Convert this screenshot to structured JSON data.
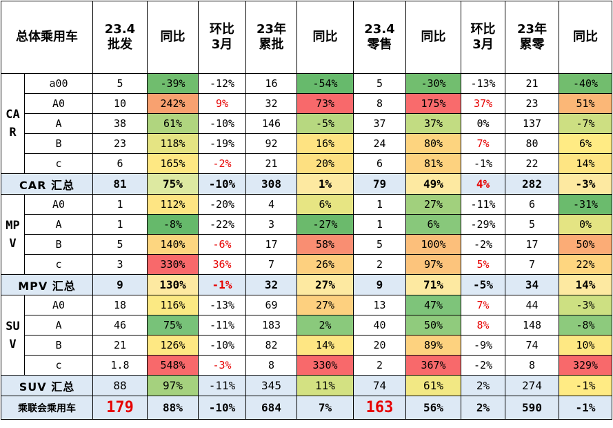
{
  "header": {
    "corner": "总体乘用车",
    "columns": [
      "23.4批发",
      "同比",
      "环比3月",
      "23年累批",
      "同比",
      "23.4零售",
      "同比",
      "环比3月",
      "23年累零",
      "同比"
    ]
  },
  "groups": [
    {
      "label": "CAR",
      "rows": [
        {
          "segment": "a00",
          "cells": [
            {
              "v": "5"
            },
            {
              "v": "-39%",
              "bg": "#70bd6e"
            },
            {
              "v": "-12%"
            },
            {
              "v": "16"
            },
            {
              "v": "-54%",
              "bg": "#67ba6c"
            },
            {
              "v": "5"
            },
            {
              "v": "-30%",
              "bg": "#72be6f"
            },
            {
              "v": "-13%"
            },
            {
              "v": "21"
            },
            {
              "v": "-40%",
              "bg": "#72bd6e"
            }
          ]
        },
        {
          "segment": "A0",
          "cells": [
            {
              "v": "10"
            },
            {
              "v": "242%",
              "bg": "#f8a170"
            },
            {
              "v": "9%",
              "red": true
            },
            {
              "v": "32"
            },
            {
              "v": "73%",
              "bg": "#f8696b"
            },
            {
              "v": "8"
            },
            {
              "v": "175%",
              "bg": "#f96b6c"
            },
            {
              "v": "37%",
              "red": true
            },
            {
              "v": "23"
            },
            {
              "v": "51%",
              "bg": "#fbb777"
            }
          ]
        },
        {
          "segment": "A",
          "cells": [
            {
              "v": "38"
            },
            {
              "v": "61%",
              "bg": "#b0d57f"
            },
            {
              "v": "-10%"
            },
            {
              "v": "146"
            },
            {
              "v": "-5%",
              "bg": "#b7d880"
            },
            {
              "v": "37"
            },
            {
              "v": "37%",
              "bg": "#c2dc82"
            },
            {
              "v": "0%"
            },
            {
              "v": "137"
            },
            {
              "v": "-7%",
              "bg": "#cddf82"
            }
          ]
        },
        {
          "segment": "B",
          "cells": [
            {
              "v": "23"
            },
            {
              "v": "118%",
              "bg": "#e5e483"
            },
            {
              "v": "-19%"
            },
            {
              "v": "92"
            },
            {
              "v": "16%",
              "bg": "#fee382"
            },
            {
              "v": "24"
            },
            {
              "v": "80%",
              "bg": "#fdd47f"
            },
            {
              "v": "7%",
              "red": true
            },
            {
              "v": "80"
            },
            {
              "v": "6%",
              "bg": "#ffeb84"
            }
          ]
        },
        {
          "segment": "c",
          "cells": [
            {
              "v": "6"
            },
            {
              "v": "165%",
              "bg": "#fee883"
            },
            {
              "v": "-2%",
              "red": true
            },
            {
              "v": "21"
            },
            {
              "v": "20%",
              "bg": "#fde081"
            },
            {
              "v": "6"
            },
            {
              "v": "81%",
              "bg": "#fdd27f"
            },
            {
              "v": "-1%"
            },
            {
              "v": "22"
            },
            {
              "v": "14%",
              "bg": "#fee583"
            }
          ]
        }
      ],
      "summary": {
        "label": "CAR 汇总",
        "cells": [
          {
            "v": "81"
          },
          {
            "v": "75%"
          },
          {
            "v": "-10%"
          },
          {
            "v": "308"
          },
          {
            "v": "1%"
          },
          {
            "v": "79"
          },
          {
            "v": "49%"
          },
          {
            "v": "4%",
            "red": true
          },
          {
            "v": "282"
          },
          {
            "v": "-3%"
          }
        ]
      }
    },
    {
      "label": "MPV",
      "rows": [
        {
          "segment": "A0",
          "cells": [
            {
              "v": "1"
            },
            {
              "v": "112%",
              "bg": "#fee583"
            },
            {
              "v": "-20%"
            },
            {
              "v": "4"
            },
            {
              "v": "6%",
              "bg": "#e7e583"
            },
            {
              "v": "1"
            },
            {
              "v": "27%",
              "bg": "#a1d07d"
            },
            {
              "v": "-11%"
            },
            {
              "v": "6"
            },
            {
              "v": "-31%",
              "bg": "#6bbb6d"
            }
          ]
        },
        {
          "segment": "A",
          "cells": [
            {
              "v": "1"
            },
            {
              "v": "-8%",
              "bg": "#66b96b"
            },
            {
              "v": "-22%"
            },
            {
              "v": "3"
            },
            {
              "v": "-27%",
              "bg": "#6bba6c"
            },
            {
              "v": "1"
            },
            {
              "v": "6%",
              "bg": "#88c87b"
            },
            {
              "v": "-29%"
            },
            {
              "v": "5"
            },
            {
              "v": "0%",
              "bg": "#e4e483"
            }
          ]
        },
        {
          "segment": "B",
          "cells": [
            {
              "v": "5"
            },
            {
              "v": "140%",
              "bg": "#fdd680"
            },
            {
              "v": "-6%",
              "red": true
            },
            {
              "v": "17"
            },
            {
              "v": "58%",
              "bg": "#f98e72"
            },
            {
              "v": "5"
            },
            {
              "v": "100%",
              "bg": "#fcbf7b"
            },
            {
              "v": "-2%"
            },
            {
              "v": "17"
            },
            {
              "v": "50%",
              "bg": "#fbac76"
            }
          ]
        },
        {
          "segment": "c",
          "cells": [
            {
              "v": "3"
            },
            {
              "v": "330%",
              "bg": "#f8696b"
            },
            {
              "v": "36%",
              "red": true
            },
            {
              "v": "7"
            },
            {
              "v": "26%",
              "bg": "#fdd07f"
            },
            {
              "v": "2"
            },
            {
              "v": "97%",
              "bg": "#fcc47c"
            },
            {
              "v": "5%",
              "red": true
            },
            {
              "v": "7"
            },
            {
              "v": "22%",
              "bg": "#fed680"
            }
          ]
        }
      ],
      "summary": {
        "label": "MPV 汇总",
        "cells": [
          {
            "v": "9"
          },
          {
            "v": "130%"
          },
          {
            "v": "-1%",
            "red": true
          },
          {
            "v": "32"
          },
          {
            "v": "27%"
          },
          {
            "v": "9"
          },
          {
            "v": "71%"
          },
          {
            "v": "-5%"
          },
          {
            "v": "34"
          },
          {
            "v": "14%"
          }
        ]
      }
    },
    {
      "label": "SUV",
      "rows": [
        {
          "segment": "A0",
          "cells": [
            {
              "v": "18"
            },
            {
              "v": "116%",
              "bg": "#fbe983"
            },
            {
              "v": "-13%"
            },
            {
              "v": "69"
            },
            {
              "v": "27%",
              "bg": "#fdd07f"
            },
            {
              "v": "13"
            },
            {
              "v": "47%",
              "bg": "#7ec47a"
            },
            {
              "v": "7%",
              "red": true
            },
            {
              "v": "44"
            },
            {
              "v": "-3%",
              "bg": "#cde082"
            }
          ]
        },
        {
          "segment": "A",
          "cells": [
            {
              "v": "46"
            },
            {
              "v": "75%",
              "bg": "#78c279"
            },
            {
              "v": "-11%"
            },
            {
              "v": "183"
            },
            {
              "v": "2%",
              "bg": "#8ac97c"
            },
            {
              "v": "40"
            },
            {
              "v": "50%",
              "bg": "#90cb7d"
            },
            {
              "v": "8%",
              "red": true
            },
            {
              "v": "148"
            },
            {
              "v": "-8%",
              "bg": "#8dca7d"
            }
          ]
        },
        {
          "segment": "B",
          "cells": [
            {
              "v": "21"
            },
            {
              "v": "126%",
              "bg": "#fee883"
            },
            {
              "v": "-10%"
            },
            {
              "v": "82"
            },
            {
              "v": "14%",
              "bg": "#fee683"
            },
            {
              "v": "20"
            },
            {
              "v": "89%",
              "bg": "#fdd27f"
            },
            {
              "v": "-9%"
            },
            {
              "v": "74"
            },
            {
              "v": "10%",
              "bg": "#fee883"
            }
          ]
        },
        {
          "segment": "c",
          "cells": [
            {
              "v": "1.8"
            },
            {
              "v": "548%",
              "bg": "#f8696b"
            },
            {
              "v": "-3%",
              "red": true
            },
            {
              "v": "8"
            },
            {
              "v": "330%",
              "bg": "#f8696b"
            },
            {
              "v": "2"
            },
            {
              "v": "367%",
              "bg": "#f8696b"
            },
            {
              "v": "-2%"
            },
            {
              "v": "8"
            },
            {
              "v": "329%",
              "bg": "#f8696b"
            }
          ]
        }
      ],
      "summary": {
        "label": "SUV 汇总",
        "plain": true,
        "cells": [
          {
            "v": "88"
          },
          {
            "v": "97%",
            "bg": "#a5d17e"
          },
          {
            "v": "-11%"
          },
          {
            "v": "345"
          },
          {
            "v": "11%",
            "bg": "#d3e182"
          },
          {
            "v": "74"
          },
          {
            "v": "61%",
            "bg": "#f2e884"
          },
          {
            "v": "2%"
          },
          {
            "v": "274"
          },
          {
            "v": "-1%",
            "bg": "#ffeb84"
          }
        ]
      }
    }
  ],
  "total": {
    "label": "乘联会乘用车",
    "cells": [
      {
        "v": "179",
        "big": true
      },
      {
        "v": "88%"
      },
      {
        "v": "-10%"
      },
      {
        "v": "684"
      },
      {
        "v": "7%"
      },
      {
        "v": "163",
        "big": true
      },
      {
        "v": "56%"
      },
      {
        "v": "2%"
      },
      {
        "v": "590"
      },
      {
        "v": "-1%"
      }
    ]
  },
  "summary_colors": {
    "CAR": [
      "",
      "#dde9a1",
      "",
      "",
      "#fde9a1",
      "",
      "#fde9a1",
      "",
      "",
      "#fde9a1"
    ],
    "MPV": [
      "",
      "#fde9a1",
      "",
      "",
      "#fde9a1",
      "",
      "#fde9a1",
      "",
      "",
      "#fde9a1"
    ]
  },
  "colors": {
    "summary_bg": "#dde9f5",
    "red_text": "#e60000"
  }
}
